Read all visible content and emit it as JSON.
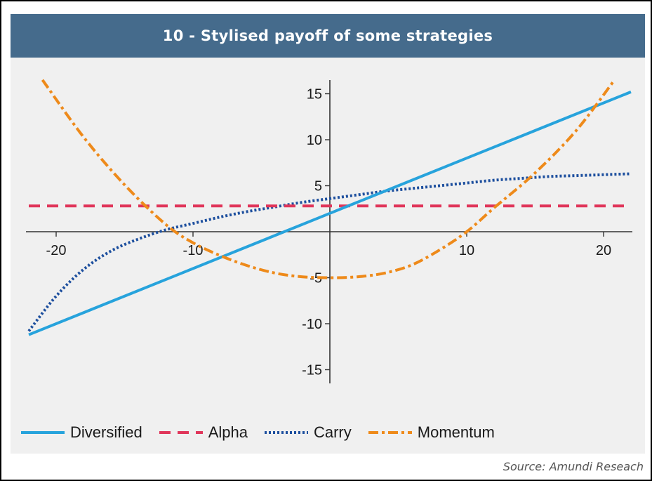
{
  "title": "10 - Stylised payoff of some strategies",
  "source": "Source: Amundi Reseach",
  "colors": {
    "title_bg": "#456b8c",
    "plot_bg": "#f0f0f0",
    "diversified": "#27a3dc",
    "alpha": "#e0365a",
    "carry": "#1d4f9e",
    "momentum": "#ee8a1a"
  },
  "chart_data": {
    "type": "line",
    "title": "10 - Stylised payoff of some strategies",
    "xlabel": "",
    "ylabel": "",
    "xlim": [
      -22,
      22
    ],
    "ylim": [
      -16,
      16
    ],
    "x_ticks": [
      -20,
      -10,
      10,
      20
    ],
    "y_ticks": [
      -15,
      -10,
      -5,
      5,
      10,
      15
    ],
    "x_tick_labels": [
      "-20",
      "-10",
      "10",
      "20"
    ],
    "y_tick_labels": [
      "-15",
      "-10",
      "-5",
      "5",
      "10",
      "15"
    ],
    "grid": false,
    "legend_position": "bottom",
    "series": [
      {
        "name": "Diversified",
        "style": "solid",
        "x": [
          -22,
          -11,
          0,
          11,
          22
        ],
        "y": [
          -11.2,
          -4.6,
          2.0,
          8.6,
          15.2
        ]
      },
      {
        "name": "Alpha",
        "style": "dashed",
        "x": [
          -22,
          22
        ],
        "y": [
          2.8,
          2.8
        ]
      },
      {
        "name": "Carry",
        "style": "dotted",
        "x": [
          -22,
          -20,
          -18,
          -16,
          -14,
          -12,
          -10,
          -8,
          -6,
          -4,
          -2,
          0,
          2,
          4,
          6,
          8,
          10,
          12,
          14,
          16,
          18,
          20,
          22
        ],
        "y": [
          -10.8,
          -7.0,
          -4.1,
          -2.1,
          -0.8,
          0.2,
          0.9,
          1.6,
          2.2,
          2.7,
          3.2,
          3.6,
          4.0,
          4.4,
          4.7,
          5.0,
          5.3,
          5.6,
          5.8,
          6.0,
          6.1,
          6.2,
          6.3
        ]
      },
      {
        "name": "Momentum",
        "style": "dashdot",
        "x": [
          -21,
          -18,
          -15,
          -12,
          -10,
          -8,
          -6,
          -4,
          -2,
          0,
          2,
          4,
          6,
          8,
          10,
          12,
          15,
          18,
          20.8
        ],
        "y": [
          16.5,
          10.3,
          5.1,
          0.8,
          -1.2,
          -2.6,
          -3.7,
          -4.5,
          -4.9,
          -5.0,
          -4.9,
          -4.5,
          -3.6,
          -2.0,
          0.0,
          2.6,
          6.4,
          11.0,
          16.5
        ]
      }
    ]
  }
}
